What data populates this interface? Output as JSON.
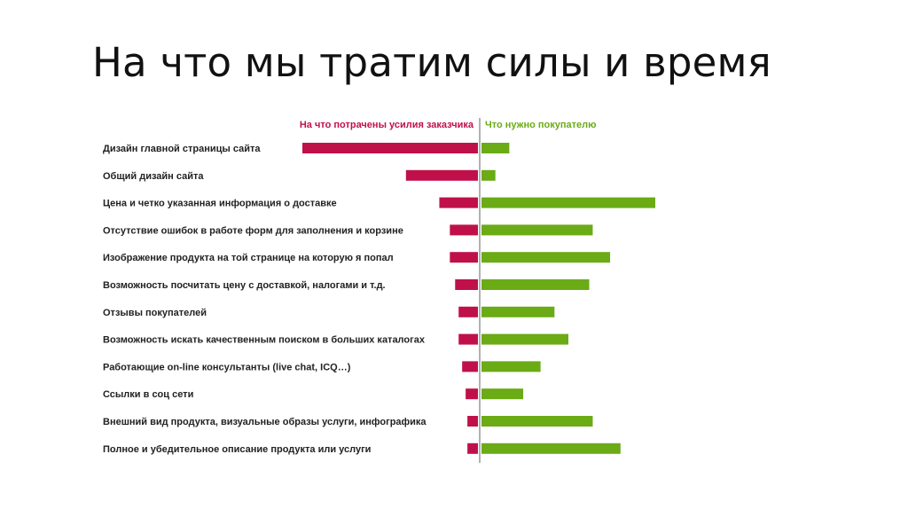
{
  "slide": {
    "title": "На что мы тратим силы и время"
  },
  "colors": {
    "effort": "#c0104a",
    "need": "#6aab16",
    "divider": "#999999",
    "text": "#222222"
  },
  "chart_data": {
    "type": "bar",
    "orientation": "horizontal-diverging",
    "legend": {
      "placement": "top"
    },
    "grid": false,
    "series": [
      {
        "name": "На что потрачены усилия заказчика",
        "direction": "left",
        "values": [
          100,
          41,
          22,
          16,
          16,
          13,
          11,
          11,
          9,
          7,
          6,
          6
        ]
      },
      {
        "name": "Что нужно покупателю",
        "direction": "right",
        "values": [
          16,
          8,
          100,
          64,
          74,
          62,
          42,
          50,
          34,
          24,
          64,
          80
        ]
      }
    ],
    "categories": [
      "Дизайн главной страницы сайта",
      "Общий дизайн сайта",
      "Цена и четко указанная информация о доставке",
      "Отсутствие ошибок в работе форм для заполнения и корзине",
      "Изображение продукта на той странице на которую я попал",
      "Возможность посчитать цену с доставкой, налогами и т.д.",
      "Отзывы покупателей",
      "Возможность искать качественным поиском в больших каталогах",
      "Работающие on-line консультанты (live chat, ICQ…)",
      "Ссылки в соц сети",
      "Внешний вид продукта, визуальные образы услуги, инфографика",
      "Полное и убедительное описание продукта или услуги"
    ]
  }
}
